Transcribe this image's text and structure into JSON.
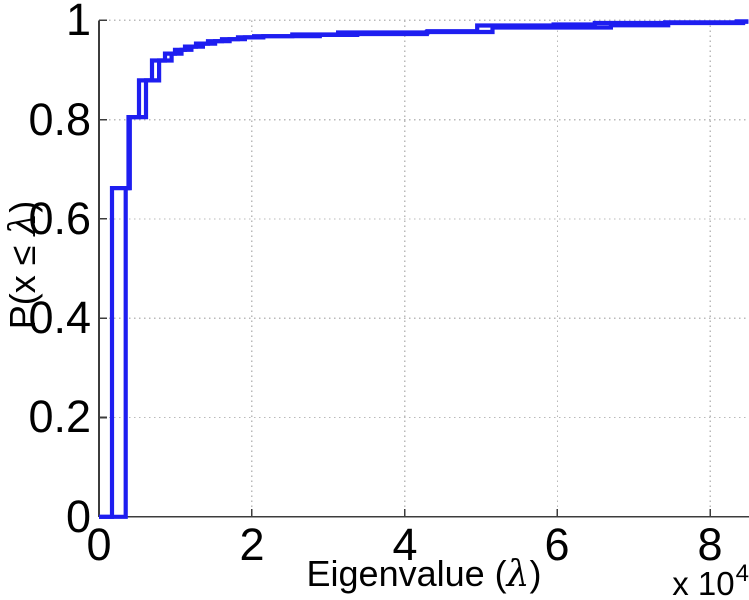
{
  "figure": {
    "background_color": "#ffffff",
    "axis_color": "#3c3c3c",
    "grid_color": "#b9b9b9",
    "curve_color": "#1e1ef0"
  },
  "chart_data": {
    "type": "line",
    "subtype": "empirical-cdf-staircase",
    "title": "",
    "xlabel": "Eigenvalue (λ)",
    "ylabel": "P(x ≤ λ)",
    "xlabel_parts": {
      "pre": "Eigenvalue (",
      "lambda": "λ",
      "post": ")"
    },
    "ylabel_parts": {
      "pre": "P(x ≤ ",
      "lambda": "λ",
      "post": ")"
    },
    "x_axis_multiplier": {
      "base": "x 10",
      "exponent": "4"
    },
    "xlim": [
      0,
      85000
    ],
    "ylim": [
      0,
      1
    ],
    "x_ticks": [
      0,
      20000,
      40000,
      60000,
      80000
    ],
    "x_tick_labels": [
      "0",
      "2",
      "4",
      "6",
      "8"
    ],
    "y_ticks": [
      0,
      0.2,
      0.4,
      0.6,
      0.8,
      1
    ],
    "y_tick_labels": [
      "0",
      "0.2",
      "0.4",
      "0.6",
      "0.8",
      "1"
    ],
    "grid": true,
    "grid_style": "dotted",
    "legend": null,
    "series": [
      {
        "name": "ecdf-1",
        "color": "#1e1ef0",
        "line_width": 4.2,
        "start": [
          0,
          0
        ],
        "steps": [
          [
            1700,
            0.662
          ],
          [
            3860,
            0.805
          ],
          [
            5240,
            0.879
          ],
          [
            6940,
            0.919
          ],
          [
            8640,
            0.933
          ],
          [
            9950,
            0.9405
          ],
          [
            11260,
            0.947
          ],
          [
            12700,
            0.953
          ],
          [
            14270,
            0.958
          ],
          [
            16100,
            0.962
          ],
          [
            18190,
            0.9655
          ],
          [
            20300,
            0.968
          ],
          [
            25300,
            0.9715
          ],
          [
            31300,
            0.9755
          ],
          [
            43000,
            0.978
          ],
          [
            49500,
            0.9895
          ],
          [
            59500,
            0.9915
          ],
          [
            64900,
            0.9945
          ],
          [
            74100,
            0.996
          ],
          [
            83500,
            0.998
          ]
        ]
      },
      {
        "name": "ecdf-2",
        "color": "#1e1ef0",
        "line_width": 4.2,
        "start": [
          0,
          0
        ],
        "steps": [
          [
            3500,
            0.662
          ],
          [
            4030,
            0.805
          ],
          [
            6150,
            0.879
          ],
          [
            7870,
            0.919
          ],
          [
            9500,
            0.933
          ],
          [
            10800,
            0.9405
          ],
          [
            12100,
            0.947
          ],
          [
            13600,
            0.953
          ],
          [
            15200,
            0.958
          ],
          [
            17100,
            0.962
          ],
          [
            19100,
            0.9655
          ],
          [
            21500,
            0.968
          ],
          [
            28900,
            0.9705
          ],
          [
            33800,
            0.9725
          ],
          [
            42900,
            0.9765
          ],
          [
            51500,
            0.9855
          ],
          [
            67000,
            0.99
          ],
          [
            74500,
            0.9945
          ],
          [
            84300,
            0.997
          ]
        ]
      }
    ]
  }
}
